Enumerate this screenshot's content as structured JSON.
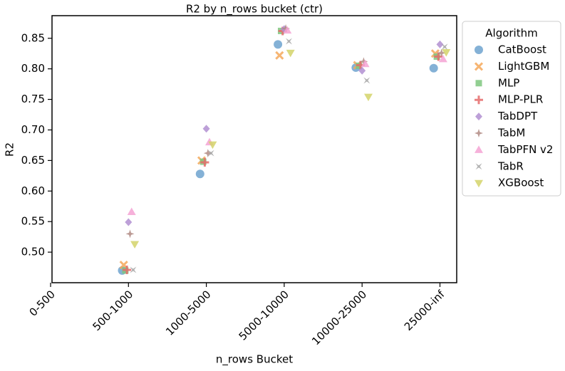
{
  "chart_data": {
    "type": "scatter",
    "title": "R2 by n_rows bucket (ctr)",
    "x_label": "n_rows Bucket",
    "y_label": "R2",
    "categories": [
      "0-500",
      "500-1000",
      "1000-5000",
      "5000-10000",
      "10000-25000",
      "25000-inf"
    ],
    "ylim": [
      0.45,
      0.887
    ],
    "yticks": [
      {
        "value": 0.5,
        "label": "0.50"
      },
      {
        "value": 0.55,
        "label": "0.55"
      },
      {
        "value": 0.6,
        "label": "0.60"
      },
      {
        "value": 0.65,
        "label": "0.65"
      },
      {
        "value": 0.7,
        "label": "0.70"
      },
      {
        "value": 0.75,
        "label": "0.75"
      },
      {
        "value": 0.8,
        "label": "0.80"
      },
      {
        "value": 0.85,
        "label": "0.85"
      }
    ],
    "legend_title": "Algorithm",
    "legend_position": "outside-upper-right",
    "series": [
      {
        "name": "CatBoost",
        "color": "#6fa3cf",
        "marker": "circle",
        "values": [
          null,
          0.47,
          0.628,
          0.84,
          0.802,
          0.801
        ]
      },
      {
        "name": "LightGBM",
        "color": "#f5a85a",
        "marker": "x",
        "values": [
          null,
          0.479,
          0.65,
          0.822,
          0.806,
          0.825
        ]
      },
      {
        "name": "MLP",
        "color": "#7fc77f",
        "marker": "square",
        "values": [
          null,
          0.47,
          0.648,
          0.862,
          0.805,
          0.82
        ]
      },
      {
        "name": "MLP-PLR",
        "color": "#e56b6b",
        "marker": "plus",
        "values": [
          null,
          0.471,
          0.647,
          0.862,
          0.806,
          0.82
        ]
      },
      {
        "name": "TabDPT",
        "color": "#b28fd1",
        "marker": "diamond",
        "values": [
          null,
          0.549,
          0.702,
          0.865,
          0.797,
          0.84
        ]
      },
      {
        "name": "TabM",
        "color": "#b08a82",
        "marker": "star4",
        "values": [
          null,
          0.53,
          0.662,
          0.866,
          0.812,
          0.826
        ]
      },
      {
        "name": "TabPFN v2",
        "color": "#f5a3d3",
        "marker": "triangle-up",
        "values": [
          null,
          0.566,
          0.68,
          0.863,
          0.808,
          0.816
        ]
      },
      {
        "name": "TabR",
        "color": "#a5a5a5",
        "marker": "star4x",
        "values": [
          null,
          0.471,
          0.662,
          0.845,
          0.781,
          0.836
        ]
      },
      {
        "name": "XGBoost",
        "color": "#d4d46a",
        "marker": "triangle-down",
        "values": [
          null,
          0.513,
          0.676,
          0.826,
          0.754,
          0.827
        ]
      }
    ]
  }
}
